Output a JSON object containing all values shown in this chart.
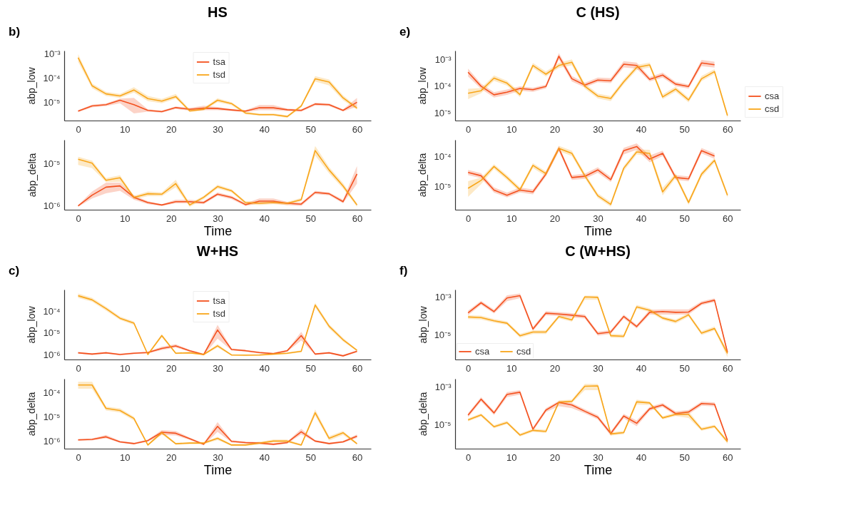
{
  "chart_data": [
    {
      "type": "line",
      "title": "HS",
      "annotations": [
        "b)"
      ],
      "ylabel": "abp_low",
      "log": true,
      "legend": "top",
      "x": [
        0,
        3,
        6,
        9,
        12,
        15,
        18,
        21,
        24,
        27,
        30,
        33,
        36,
        39,
        42,
        45,
        48,
        51,
        54,
        57,
        60
      ],
      "xlim": [
        -3,
        63
      ],
      "xticks": [
        0,
        10,
        20,
        30,
        40,
        50,
        60
      ],
      "ylim": [
        1.7e-06,
        0.0014
      ],
      "yticks": [
        {
          "value": 0.001,
          "label": "10⁻³"
        },
        {
          "value": 0.0001,
          "label": "10⁻⁴"
        },
        {
          "value": 1e-05,
          "label": "10⁻⁵"
        }
      ],
      "series": [
        {
          "name": "tsa",
          "color": "#f4511e",
          "values": [
            4.2e-06,
            6.9e-06,
            7.8e-06,
            1.2e-05,
            7.8e-06,
            4.5e-06,
            4e-06,
            5.9e-06,
            5e-06,
            5.6e-06,
            5.4e-06,
            4.7e-06,
            4.2e-06,
            5.8e-06,
            5.8e-06,
            4.8e-06,
            4.5e-06,
            8.3e-06,
            7.8e-06,
            4.5e-06,
            9.8e-06
          ],
          "lower": [
            3.8e-06,
            6e-06,
            6.8e-06,
            9e-06,
            3.4e-06,
            4e-06,
            3.6e-06,
            5.2e-06,
            4.4e-06,
            4.6e-06,
            4.6e-06,
            4.2e-06,
            3.8e-06,
            4.6e-06,
            4.6e-06,
            4.2e-06,
            4e-06,
            7.2e-06,
            6.8e-06,
            4.1e-06,
            6.5e-06
          ],
          "upper": [
            4.6e-06,
            7.8e-06,
            8.8e-06,
            1.4e-05,
            1.5e-05,
            5e-06,
            4.4e-06,
            6.6e-06,
            5.7e-06,
            7e-06,
            6.2e-06,
            5.2e-06,
            4.6e-06,
            7.5e-06,
            7.5e-06,
            5.4e-06,
            5e-06,
            9.5e-06,
            8.8e-06,
            5e-06,
            1.5e-05
          ]
        },
        {
          "name": "tsd",
          "color": "#f9a61a",
          "values": [
            0.00071,
            4.8e-05,
            2.2e-05,
            1.8e-05,
            3.2e-05,
            1.4e-05,
            1.1e-05,
            1.7e-05,
            4.3e-06,
            5e-06,
            1.2e-05,
            8.7e-06,
            3.5e-06,
            3e-06,
            3e-06,
            2.5e-06,
            6.9e-06,
            9.3e-05,
            6.9e-05,
            1.5e-05,
            5.6e-06
          ],
          "lower": [
            0.00048,
            3.8e-05,
            1.8e-05,
            1.5e-05,
            2.5e-05,
            1.1e-05,
            9e-06,
            1.4e-05,
            3.8e-06,
            4.4e-06,
            1e-05,
            7.4e-06,
            3.1e-06,
            2.7e-06,
            2.7e-06,
            2.2e-06,
            6e-06,
            7.2e-05,
            5e-05,
            1.2e-05,
            4.8e-06
          ],
          "upper": [
            0.001,
            6e-05,
            2.7e-05,
            2.2e-05,
            4.2e-05,
            1.8e-05,
            1.35e-05,
            2.2e-05,
            4.9e-06,
            5.7e-06,
            1.45e-05,
            1e-05,
            4e-06,
            3.4e-06,
            3.4e-06,
            2.8e-06,
            8e-06,
            0.00012,
            8.8e-05,
            1.9e-05,
            6.5e-06
          ]
        }
      ]
    },
    {
      "type": "line",
      "xlabel": "Time",
      "ylabel": "abp_delta",
      "log": true,
      "x": [
        0,
        3,
        6,
        9,
        12,
        15,
        18,
        21,
        24,
        27,
        30,
        33,
        36,
        39,
        42,
        45,
        48,
        51,
        54,
        57,
        60
      ],
      "xlim": [
        -3,
        63
      ],
      "xticks": [
        0,
        10,
        20,
        30,
        40,
        50,
        60
      ],
      "ylim": [
        8.1e-07,
        3.8e-05
      ],
      "yticks": [
        {
          "value": 1e-05,
          "label": "10⁻⁵"
        },
        {
          "value": 1e-06,
          "label": "10⁻⁶"
        }
      ],
      "series": [
        {
          "color": "#f4511e",
          "values": [
            1e-06,
            1.8e-06,
            2.8e-06,
            3e-06,
            1.6e-06,
            1.2e-06,
            1.05e-06,
            1.26e-06,
            1.26e-06,
            1.2e-06,
            1.9e-06,
            1.6e-06,
            1.07e-06,
            1.3e-06,
            1.3e-06,
            1.15e-06,
            1.1e-06,
            2.1e-06,
            1.95e-06,
            1.26e-06,
            5.8e-06
          ],
          "lower": [
            9.5e-07,
            1.5e-06,
            2e-06,
            2.3e-06,
            1.4e-06,
            1.1e-06,
            1e-06,
            1.15e-06,
            1.15e-06,
            1.1e-06,
            1.75e-06,
            1.45e-06,
            1e-06,
            1.15e-06,
            1.15e-06,
            1.05e-06,
            1e-06,
            1.9e-06,
            1.8e-06,
            1.15e-06,
            3.4e-06
          ],
          "upper": [
            1.05e-06,
            2.2e-06,
            3.6e-06,
            3.6e-06,
            1.8e-06,
            1.3e-06,
            1.1e-06,
            1.4e-06,
            1.4e-06,
            1.3e-06,
            2.1e-06,
            1.75e-06,
            1.15e-06,
            1.5e-06,
            1.5e-06,
            1.25e-06,
            1.2e-06,
            2.3e-06,
            2.1e-06,
            1.4e-06,
            9e-06
          ]
        },
        {
          "color": "#f9a61a",
          "values": [
            1.3e-05,
            1.05e-05,
            4.1e-06,
            4.7e-06,
            1.6e-06,
            1.95e-06,
            1.9e-06,
            3.4e-06,
            1.05e-06,
            1.6e-06,
            2.9e-06,
            2.3e-06,
            1.2e-06,
            1.15e-06,
            1.2e-06,
            1.15e-06,
            1.4e-06,
            2.1e-05,
            7.2e-06,
            3e-06,
            1.05e-06
          ],
          "lower": [
            9.5e-06,
            8e-06,
            3.7e-06,
            3.8e-06,
            1.45e-06,
            1.7e-06,
            1.7e-06,
            2.8e-06,
            9.5e-07,
            1.45e-06,
            2.6e-06,
            2.1e-06,
            1.1e-06,
            1.05e-06,
            1.1e-06,
            1.05e-06,
            1.3e-06,
            1.6e-05,
            6e-06,
            2.6e-06,
            9.5e-07
          ],
          "upper": [
            1.5e-05,
            1.2e-05,
            4.6e-06,
            5.4e-06,
            1.75e-06,
            2.2e-06,
            2.1e-06,
            4.2e-06,
            1.15e-06,
            1.75e-06,
            3.2e-06,
            2.5e-06,
            1.3e-06,
            1.25e-06,
            1.3e-06,
            1.25e-06,
            1.55e-06,
            2.7e-05,
            8.5e-06,
            3.5e-06,
            1.15e-06
          ]
        }
      ]
    },
    {
      "type": "line",
      "title": "C (HS)",
      "annotations": [
        "e)"
      ],
      "ylabel": "abp_low",
      "log": true,
      "legend": "bottom right",
      "x": [
        0,
        3,
        6,
        9,
        12,
        15,
        18,
        21,
        24,
        27,
        30,
        33,
        36,
        39,
        42,
        45,
        48,
        51,
        54,
        57,
        60
      ],
      "xlim": [
        -3,
        63
      ],
      "xticks": [
        0,
        10,
        20,
        30,
        40,
        50,
        60
      ],
      "ylim": [
        5.3e-06,
        0.0021
      ],
      "yticks": [
        {
          "value": 0.001,
          "label": "10⁻³"
        },
        {
          "value": 0.0001,
          "label": "10⁻⁴"
        },
        {
          "value": 1e-05,
          "label": "10⁻⁵"
        }
      ],
      "series": [
        {
          "name": "csa",
          "color": "#f4511e",
          "values": [
            0.00033,
            0.0001,
            4.8e-05,
            6e-05,
            8.3e-05,
            7.4e-05,
            9.8e-05,
            0.0013,
            0.00019,
            0.00011,
            0.00017,
            0.00016,
            0.00066,
            0.00059,
            0.00018,
            0.00026,
            0.00012,
            9.8e-05,
            0.00073,
            0.00063,
            null
          ],
          "lower": [
            0.00023,
            8e-05,
            3.8e-05,
            4.8e-05,
            6.8e-05,
            6.2e-05,
            8.3e-05,
            0.001,
            0.00015,
            9e-05,
            0.00014,
            0.00013,
            0.0005,
            0.00045,
            0.00015,
            0.00021,
            0.0001,
            8.2e-05,
            0.00056,
            0.00049,
            null
          ],
          "upper": [
            0.00045,
            0.000125,
            6e-05,
            7.5e-05,
            0.0001,
            8.8e-05,
            0.000115,
            0.0017,
            0.00024,
            0.000135,
            0.00021,
            0.0002,
            0.00085,
            0.00076,
            0.00022,
            0.00032,
            0.000145,
            0.000115,
            0.00095,
            0.00082,
            null
          ]
        },
        {
          "name": "csd",
          "color": "#f9a61a",
          "values": [
            5.5e-05,
            6.8e-05,
            0.0002,
            0.00013,
            4.9e-05,
            0.00059,
            0.00028,
            0.00059,
            0.00078,
            0.0001,
            4.3e-05,
            3.5e-05,
            0.000145,
            0.0005,
            0.00062,
            4e-05,
            7.8e-05,
            3.1e-05,
            0.00019,
            0.00035,
            8.1e-06
          ],
          "lower": [
            3.3e-05,
            5.5e-05,
            0.00016,
            0.000105,
            4e-05,
            0.00048,
            0.00023,
            0.00048,
            0.0006,
            8.2e-05,
            3.5e-05,
            2.8e-05,
            0.00012,
            0.0004,
            0.0005,
            3.3e-05,
            6.3e-05,
            2.5e-05,
            0.000155,
            0.00029,
            6.5e-06
          ],
          "upper": [
            8e-05,
            8.5e-05,
            0.00025,
            0.00016,
            6e-05,
            0.00073,
            0.00035,
            0.00073,
            0.001,
            0.000125,
            5.3e-05,
            4.3e-05,
            0.00018,
            0.00062,
            0.00075,
            5e-05,
            9.6e-05,
            3.8e-05,
            0.00024,
            0.00043,
            1e-05
          ]
        }
      ]
    },
    {
      "type": "line",
      "xlabel": "Time",
      "ylabel": "abp_delta",
      "log": true,
      "x": [
        0,
        3,
        6,
        9,
        12,
        15,
        18,
        21,
        24,
        27,
        30,
        33,
        36,
        39,
        42,
        45,
        48,
        51,
        54,
        57,
        60
      ],
      "xlim": [
        -3,
        63
      ],
      "xticks": [
        0,
        10,
        20,
        30,
        40,
        50,
        60
      ],
      "ylim": [
        1.66e-06,
        0.00037
      ],
      "yticks": [
        {
          "value": 0.0001,
          "label": "10⁻⁴"
        },
        {
          "value": 1e-05,
          "label": "10⁻⁵"
        }
      ],
      "series": [
        {
          "color": "#f4511e",
          "values": [
            2.95e-05,
            2.3e-05,
            7.6e-06,
            5.1e-06,
            7.6e-06,
            6.6e-06,
            2.6e-05,
            0.00019,
            2e-05,
            2.2e-05,
            3.6e-05,
            1.7e-05,
            0.00016,
            0.00022,
            8.3e-05,
            0.00013,
            2e-05,
            1.8e-05,
            0.00016,
            0.000105,
            null
          ],
          "lower": [
            2.4e-05,
            1.9e-05,
            6.2e-06,
            4.3e-06,
            6.3e-06,
            5.4e-06,
            2.2e-05,
            0.000155,
            1.65e-05,
            1.8e-05,
            2.9e-05,
            1.4e-05,
            0.00012,
            0.00017,
            6.5e-05,
            0.000105,
            1.65e-05,
            1.5e-05,
            0.00013,
            8.5e-05,
            null
          ],
          "upper": [
            3.6e-05,
            2.8e-05,
            9.3e-06,
            6.2e-06,
            9.2e-06,
            8e-06,
            3.2e-05,
            0.00023,
            2.4e-05,
            2.7e-05,
            4.4e-05,
            2.1e-05,
            0.0002,
            0.00028,
            0.00011,
            0.00016,
            2.4e-05,
            2.2e-05,
            0.000195,
            0.00013,
            null
          ]
        },
        {
          "color": "#f9a61a",
          "values": [
            8.7e-06,
            1.6e-05,
            4.7e-05,
            2e-05,
            7.8e-06,
            5.1e-05,
            2.7e-05,
            0.00019,
            0.00013,
            2.3e-05,
            4.9e-06,
            2.5e-06,
            4.1e-05,
            0.000145,
            0.00013,
            6.6e-06,
            2.3e-05,
            2.9e-06,
            2.6e-05,
            7.6e-05,
            5.1e-06
          ],
          "lower": [
            4.5e-06,
            1.2e-05,
            3.9e-05,
            1.65e-05,
            6.5e-06,
            4.2e-05,
            2.2e-05,
            0.000155,
            0.000105,
            1.9e-05,
            4.1e-06,
            2.1e-06,
            3.3e-05,
            0.00012,
            0.000105,
            5e-06,
            1.9e-05,
            2.4e-06,
            2.1e-05,
            6.3e-05,
            4.2e-06
          ],
          "upper": [
            1.5e-05,
            2e-05,
            5.6e-05,
            2.4e-05,
            9.4e-06,
            6.1e-05,
            3.2e-05,
            0.00023,
            0.00016,
            2.8e-05,
            5.9e-06,
            3e-06,
            4.9e-05,
            0.000175,
            0.00017,
            9e-06,
            2.8e-05,
            3.5e-06,
            3.1e-05,
            9e-05,
            6.1e-06
          ]
        }
      ]
    },
    {
      "type": "line",
      "title": "W+HS",
      "annotations": [
        "c)"
      ],
      "ylabel": "abp_low",
      "log": true,
      "legend": "top",
      "x": [
        0,
        3,
        6,
        9,
        12,
        15,
        18,
        21,
        24,
        27,
        30,
        33,
        36,
        39,
        42,
        45,
        48,
        51,
        54,
        57,
        60
      ],
      "xlim": [
        -3,
        63
      ],
      "xticks": [
        0,
        10,
        20,
        30,
        40,
        50,
        60
      ],
      "ylim": [
        5.9e-07,
        0.00098
      ],
      "yticks": [
        {
          "value": 0.0001,
          "label": "10⁻⁴"
        },
        {
          "value": 1e-05,
          "label": "10⁻⁵"
        },
        {
          "value": 1e-06,
          "label": "10⁻⁶"
        }
      ],
      "series": [
        {
          "name": "tsa",
          "color": "#f4511e",
          "values": [
            1.2e-06,
            1.05e-06,
            1.2e-06,
            1e-06,
            1.15e-06,
            1.23e-06,
            1.9e-06,
            2.5e-06,
            1.5e-06,
            1e-06,
            1.35e-05,
            1.7e-06,
            1.5e-06,
            1.23e-06,
            1.1e-06,
            1.5e-06,
            7.4e-06,
            1.05e-06,
            1.2e-06,
            8.7e-07,
            1.4e-06
          ],
          "lower": [
            1.1e-06,
            9.5e-07,
            1.1e-06,
            9.2e-07,
            1.05e-06,
            1.12e-06,
            1.6e-06,
            2.1e-06,
            1.35e-06,
            9.2e-07,
            5.4e-06,
            1.55e-06,
            1.35e-06,
            1.12e-06,
            1e-06,
            1.35e-06,
            4.5e-06,
            9.5e-07,
            1.1e-06,
            7.9e-07,
            1.25e-06
          ],
          "upper": [
            1.3e-06,
            1.15e-06,
            1.3e-06,
            1.1e-06,
            1.25e-06,
            1.35e-06,
            2.3e-06,
            3e-06,
            1.65e-06,
            1.1e-06,
            2.3e-05,
            1.9e-06,
            1.65e-06,
            1.35e-06,
            1.2e-06,
            1.65e-06,
            1.1e-05,
            1.15e-06,
            1.3e-06,
            9.6e-07,
            1.55e-06
          ]
        },
        {
          "name": "tsd",
          "color": "#f9a61a",
          "values": [
            0.00051,
            0.00033,
            0.00013,
            4.7e-05,
            2.8e-05,
            1e-06,
            7.4e-06,
            1.15e-06,
            1.2e-06,
            1e-06,
            2.5e-06,
            9.5e-07,
            9.3e-07,
            9.5e-07,
            1.05e-06,
            1.15e-06,
            1.4e-06,
            0.00019,
            2e-05,
            4.8e-06,
            1.55e-06
          ],
          "lower": [
            0.0004,
            0.00027,
            0.000105,
            3.9e-05,
            2.3e-05,
            9.2e-07,
            6.2e-06,
            1.05e-06,
            1.1e-06,
            9.2e-07,
            2.1e-06,
            8.7e-07,
            8.5e-07,
            8.7e-07,
            9.5e-07,
            1.05e-06,
            1.25e-06,
            0.00015,
            1.6e-05,
            4e-06,
            1.4e-06
          ],
          "upper": [
            0.00065,
            0.00041,
            0.00016,
            5.6e-05,
            3.3e-05,
            1.1e-06,
            8.8e-06,
            1.25e-06,
            1.3e-06,
            1.1e-06,
            3e-06,
            1.05e-06,
            1.02e-06,
            1.05e-06,
            1.15e-06,
            1.25e-06,
            1.55e-06,
            0.00024,
            2.5e-05,
            5.8e-06,
            1.7e-06
          ]
        }
      ]
    },
    {
      "type": "line",
      "xlabel": "Time",
      "ylabel": "abp_delta",
      "log": true,
      "x": [
        0,
        3,
        6,
        9,
        12,
        15,
        18,
        21,
        24,
        27,
        30,
        33,
        36,
        39,
        42,
        45,
        48,
        51,
        54,
        57,
        60
      ],
      "xlim": [
        -3,
        63
      ],
      "xticks": [
        0,
        10,
        20,
        30,
        40,
        50,
        60
      ],
      "ylim": [
        4.9e-07,
        0.00036
      ],
      "yticks": [
        {
          "value": 0.0001,
          "label": "10⁻⁴"
        },
        {
          "value": 1e-05,
          "label": "10⁻⁵"
        },
        {
          "value": 1e-06,
          "label": "10⁻⁶"
        }
      ],
      "series": [
        {
          "color": "#f4511e",
          "values": [
            1.12e-06,
            1.17e-06,
            1.5e-06,
            9.3e-07,
            7.9e-07,
            1.05e-06,
            2.3e-06,
            2.1e-06,
            1.26e-06,
            7.4e-07,
            4e-06,
            9.8e-07,
            8.7e-07,
            8.3e-07,
            7.4e-07,
            8.7e-07,
            2.4e-06,
            1e-06,
            7.9e-07,
            9.3e-07,
            1.6e-06
          ],
          "lower": [
            1.02e-06,
            1.06e-06,
            1.3e-06,
            8.5e-07,
            7.2e-07,
            9.5e-07,
            1.8e-06,
            1.7e-06,
            1.12e-06,
            6.8e-07,
            2.4e-06,
            8.9e-07,
            7.9e-07,
            7.5e-07,
            6.7e-07,
            7.9e-07,
            1.9e-06,
            9.1e-07,
            7.2e-07,
            8.5e-07,
            1.35e-06
          ],
          "upper": [
            1.23e-06,
            1.29e-06,
            1.8e-06,
            1.02e-06,
            8.7e-07,
            1.15e-06,
            2.8e-06,
            2.6e-06,
            1.4e-06,
            8.1e-07,
            6e-06,
            1.08e-06,
            9.6e-07,
            9.1e-07,
            8.1e-07,
            9.6e-07,
            3.2e-06,
            1.1e-06,
            8.7e-07,
            1.02e-06,
            1.9e-06
          ]
        },
        {
          "color": "#f9a61a",
          "values": [
            0.0002,
            0.0002,
            2.2e-05,
            1.8e-05,
            8.5e-06,
            6.9e-07,
            2.2e-06,
            7.8e-07,
            8.3e-07,
            8.3e-07,
            1.3e-06,
            6.9e-07,
            6.9e-07,
            8.3e-07,
            1e-06,
            1e-06,
            6.9e-07,
            1.45e-05,
            1.3e-06,
            2.2e-06,
            7.8e-07
          ],
          "lower": [
            0.00014,
            0.00014,
            1.8e-05,
            1.5e-05,
            7e-06,
            6.3e-07,
            1.9e-06,
            7.1e-07,
            7.5e-07,
            7.5e-07,
            1.1e-06,
            6.3e-07,
            6.3e-07,
            7.3e-07,
            8.8e-07,
            8.8e-07,
            6.3e-07,
            1.1e-05,
            1.05e-06,
            1.8e-06,
            7.1e-07
          ],
          "upper": [
            0.00027,
            0.00027,
            2.6e-05,
            2.2e-05,
            1e-05,
            7.6e-07,
            2.6e-06,
            8.6e-07,
            9.1e-07,
            9.1e-07,
            1.5e-06,
            7.6e-07,
            7.6e-07,
            9.5e-07,
            1.15e-06,
            1.15e-06,
            7.6e-07,
            2e-05,
            1.6e-06,
            2.6e-06,
            8.6e-07
          ]
        }
      ]
    },
    {
      "type": "line",
      "title": "C (W+HS)",
      "annotations": [
        "f)"
      ],
      "ylabel": "abp_low",
      "log": true,
      "legend": "bottom left",
      "x": [
        0,
        3,
        6,
        9,
        12,
        15,
        18,
        21,
        24,
        27,
        30,
        33,
        36,
        39,
        42,
        45,
        48,
        51,
        54,
        57,
        60
      ],
      "xlim": [
        -3,
        63
      ],
      "xticks": [
        0,
        10,
        20,
        30,
        40,
        50,
        60
      ],
      "ylim": [
        5.3e-07,
        0.0024
      ],
      "yticks": [
        {
          "value": 0.001,
          "label": "10⁻³"
        },
        {
          "value": 1e-05,
          "label": "10⁻⁵"
        }
      ],
      "series": [
        {
          "name": "csa",
          "color": "#f4511e",
          "values": [
            0.000145,
            0.00049,
            0.00017,
            0.00087,
            0.00115,
            2.1e-05,
            0.00014,
            0.000126,
            0.00011,
            9.4e-05,
            1.2e-05,
            1.45e-05,
            9.4e-05,
            2.8e-05,
            0.000155,
            0.00017,
            0.000155,
            0.00016,
            0.00046,
            0.00067,
            1.26e-06
          ],
          "lower": [
            0.00011,
            0.00039,
            0.000135,
            0.0006,
            0.00085,
            1.65e-05,
            0.00011,
            0.0001,
            8.5e-05,
            7.4e-05,
            9.5e-06,
            1.15e-05,
            7.4e-05,
            2.2e-05,
            0.00012,
            0.00012,
            0.00012,
            0.00012,
            0.00037,
            0.00053,
            9e-07
          ],
          "upper": [
            0.00019,
            0.00062,
            0.000215,
            0.0012,
            0.0015,
            2.7e-05,
            0.00018,
            0.00016,
            0.00014,
            0.00012,
            1.5e-05,
            1.85e-05,
            0.00012,
            3.5e-05,
            0.00021,
            0.00022,
            0.00022,
            0.00022,
            0.00058,
            0.00084,
            1.6e-06
          ]
        },
        {
          "name": "csd",
          "color": "#f9a61a",
          "values": [
            8.9e-05,
            8.2e-05,
            5.6e-05,
            4.2e-05,
            9.3e-06,
            1.45e-05,
            1.45e-05,
            9.4e-05,
            6.2e-05,
            0.001,
            0.00094,
            9.3e-06,
            8.7e-06,
            0.0003,
            0.0002,
            7.8e-05,
            5.2e-05,
            0.000115,
            1.26e-05,
            2.2e-05,
            1.1e-06
          ],
          "lower": [
            7e-05,
            6.5e-05,
            4.5e-05,
            3.4e-05,
            7.4e-06,
            1.15e-05,
            1.15e-05,
            7.5e-05,
            5e-05,
            0.0007,
            0.0007,
            7.4e-06,
            6.9e-06,
            0.00024,
            0.00016,
            6.2e-05,
            4.1e-05,
            9.2e-05,
            1e-05,
            1.75e-05,
            7e-07
          ],
          "upper": [
            0.00011,
            0.000105,
            7e-05,
            5.2e-05,
            1.16e-05,
            1.8e-05,
            1.8e-05,
            0.000117,
            7.7e-05,
            0.00115,
            0.00115,
            1.16e-05,
            1.1e-05,
            0.00038,
            0.00025,
            9.7e-05,
            6.5e-05,
            0.000145,
            1.6e-05,
            2.8e-05,
            1.5e-06
          ]
        }
      ]
    },
    {
      "type": "line",
      "xlabel": "Time",
      "ylabel": "abp_delta",
      "log": true,
      "x": [
        0,
        3,
        6,
        9,
        12,
        15,
        18,
        21,
        24,
        27,
        30,
        33,
        36,
        39,
        42,
        45,
        48,
        51,
        54,
        57,
        60
      ],
      "xlim": [
        -3,
        63
      ],
      "xticks": [
        0,
        10,
        20,
        30,
        40,
        50,
        60
      ],
      "ylim": [
        5.6e-07,
        0.0026
      ],
      "yticks": [
        {
          "value": 0.001,
          "label": "10⁻³"
        },
        {
          "value": 1e-05,
          "label": "10⁻⁵"
        }
      ],
      "series": [
        {
          "color": "#f4511e",
          "values": [
            3.2e-05,
            0.00022,
            4.2e-05,
            0.00039,
            0.00051,
            5.9e-06,
            5.9e-05,
            0.00015,
            0.00011,
            5.1e-05,
            2.5e-05,
            3.5e-06,
            2.9e-05,
            1.2e-05,
            6.9e-05,
            0.00011,
            3.9e-05,
            4.7e-05,
            0.00013,
            0.00012,
            1.5e-06
          ],
          "lower": [
            2.5e-05,
            0.00017,
            3.3e-05,
            0.00028,
            0.00038,
            4.6e-06,
            4.6e-05,
            9.5e-05,
            7.5e-05,
            4e-05,
            1.9e-05,
            2.7e-06,
            2.2e-05,
            8.5e-06,
            5.4e-05,
            8.6e-05,
            3e-05,
            3.6e-05,
            0.0001,
            9.2e-05,
            1.2e-06
          ],
          "upper": [
            4.1e-05,
            0.00028,
            5.4e-05,
            0.00052,
            0.00066,
            7.5e-06,
            7.5e-05,
            0.00018,
            0.00014,
            6.5e-05,
            3.2e-05,
            4.5e-06,
            3.7e-05,
            1.7e-05,
            8.8e-05,
            0.00014,
            5e-05,
            6e-05,
            0.000165,
            0.00015,
            1.9e-06
          ]
        },
        {
          "color": "#f9a61a",
          "values": [
            1.8e-05,
            3.3e-05,
            7.9e-06,
            1.3e-05,
            2.9e-06,
            5.1e-06,
            4.5e-06,
            0.000155,
            0.00017,
            0.00105,
            0.0011,
            3.3e-06,
            3.9e-06,
            0.00016,
            0.00014,
            2.3e-05,
            3.5e-05,
            3.5e-05,
            5.9e-06,
            8.3e-06,
            1.3e-06
          ],
          "lower": [
            1.5e-05,
            2.7e-05,
            6.5e-06,
            1.1e-05,
            2.4e-06,
            4.2e-06,
            3.7e-06,
            0.000125,
            0.00014,
            0.00065,
            0.00065,
            2.7e-06,
            3.2e-06,
            0.000115,
            0.00011,
            1.9e-05,
            2.9e-05,
            2.3e-05,
            4.8e-06,
            6.8e-06,
            1e-06
          ],
          "upper": [
            2.2e-05,
            4e-05,
            9.6e-06,
            1.6e-05,
            3.5e-06,
            6.2e-06,
            5.5e-06,
            0.00019,
            0.00021,
            0.0014,
            0.0014,
            4e-06,
            4.8e-06,
            0.00021,
            0.00017,
            2.8e-05,
            4.3e-05,
            5e-05,
            7.2e-06,
            1e-05,
            1.6e-06
          ]
        }
      ]
    }
  ]
}
